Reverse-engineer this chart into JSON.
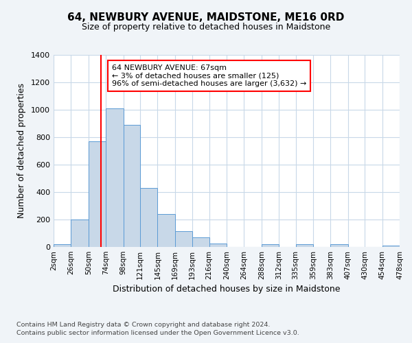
{
  "title": "64, NEWBURY AVENUE, MAIDSTONE, ME16 0RD",
  "subtitle": "Size of property relative to detached houses in Maidstone",
  "xlabel": "Distribution of detached houses by size in Maidstone",
  "ylabel": "Number of detached properties",
  "bin_edges": [
    2,
    26,
    50,
    74,
    98,
    121,
    145,
    169,
    193,
    216,
    240,
    264,
    288,
    312,
    335,
    359,
    383,
    407,
    430,
    454,
    478
  ],
  "bin_labels": [
    "2sqm",
    "26sqm",
    "50sqm",
    "74sqm",
    "98sqm",
    "121sqm",
    "145sqm",
    "169sqm",
    "193sqm",
    "216sqm",
    "240sqm",
    "264sqm",
    "288sqm",
    "312sqm",
    "335sqm",
    "359sqm",
    "383sqm",
    "407sqm",
    "430sqm",
    "454sqm",
    "478sqm"
  ],
  "bar_heights": [
    20,
    200,
    770,
    1010,
    890,
    430,
    240,
    115,
    70,
    25,
    0,
    0,
    20,
    0,
    20,
    0,
    20,
    0,
    0,
    10
  ],
  "bar_color": "#c8d8e8",
  "bar_edge_color": "#5b9bd5",
  "property_line_x": 67,
  "property_line_color": "red",
  "annotation_line1": "64 NEWBURY AVENUE: 67sqm",
  "annotation_line2": "← 3% of detached houses are smaller (125)",
  "annotation_line3": "96% of semi-detached houses are larger (3,632) →",
  "annotation_box_color": "white",
  "annotation_box_edge": "red",
  "ylim": [
    0,
    1400
  ],
  "yticks": [
    0,
    200,
    400,
    600,
    800,
    1000,
    1200,
    1400
  ],
  "footer_line1": "Contains HM Land Registry data © Crown copyright and database right 2024.",
  "footer_line2": "Contains public sector information licensed under the Open Government Licence v3.0.",
  "bg_color": "#f0f4f8",
  "plot_bg_color": "#ffffff",
  "grid_color": "#c8d8e8"
}
